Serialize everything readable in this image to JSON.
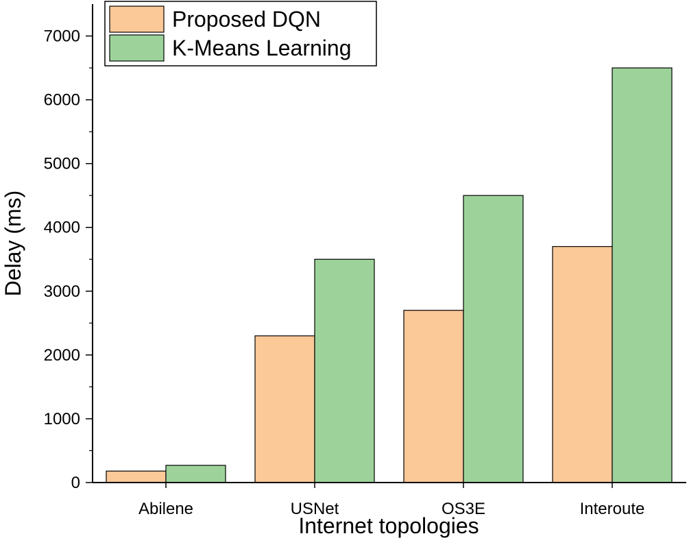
{
  "chart_data": {
    "type": "bar",
    "title": "",
    "xlabel": "Internet topologies",
    "ylabel": "Delay (ms)",
    "categories": [
      "Abilene",
      "USNet",
      "OS3E",
      "Interoute"
    ],
    "ylim": [
      0,
      7500
    ],
    "yticks": [
      0,
      1000,
      2000,
      3000,
      4000,
      5000,
      6000,
      7000
    ],
    "ytick_labels": [
      "0",
      "1000",
      "2000",
      "3000",
      "4000",
      "5000",
      "6000",
      "7000"
    ],
    "legend_position": "top-left",
    "grid": false,
    "series": [
      {
        "name": "Proposed DQN",
        "color": "#fbc898",
        "values": [
          180,
          2300,
          2700,
          3700
        ]
      },
      {
        "name": "K-Means Learning",
        "color": "#9dd39b",
        "values": [
          270,
          3500,
          4500,
          6500
        ]
      }
    ]
  }
}
